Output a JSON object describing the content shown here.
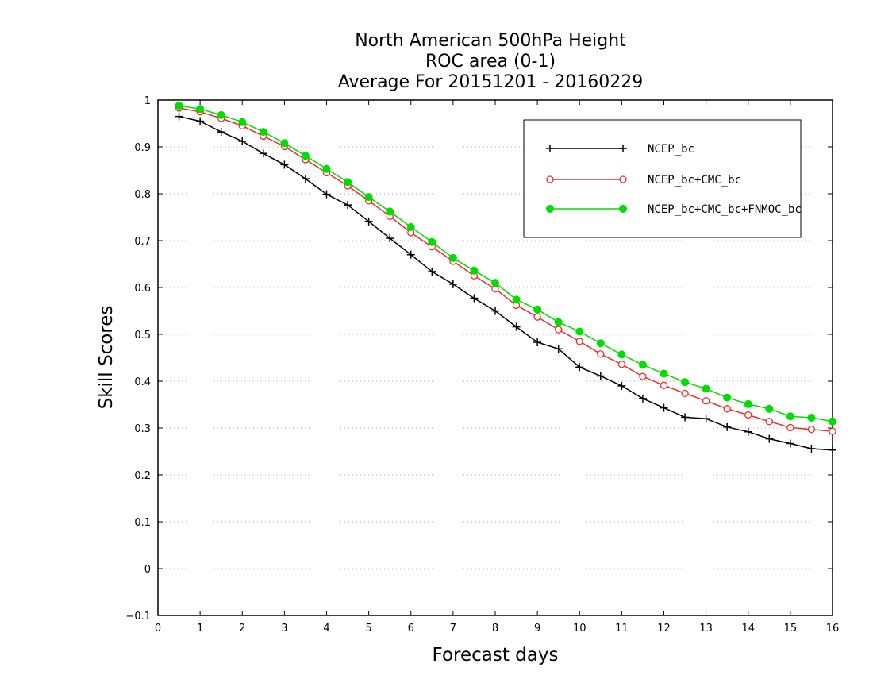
{
  "chart_data": {
    "type": "line",
    "title_lines": [
      "North American 500hPa Height",
      "ROC area (0-1)",
      "Average For 20151201 - 20160229"
    ],
    "xlabel": "Forecast days",
    "ylabel": "Skill Scores",
    "xlim": [
      0,
      16
    ],
    "ylim": [
      -0.1,
      1
    ],
    "x_ticks": [
      "0",
      "1",
      "2",
      "3",
      "4",
      "5",
      "6",
      "7",
      "8",
      "9",
      "10",
      "11",
      "12",
      "13",
      "14",
      "15",
      "16"
    ],
    "y_ticks": [
      "−0.1",
      "0",
      "0.1",
      "0.2",
      "0.3",
      "0.4",
      "0.5",
      "0.6",
      "0.7",
      "0.8",
      "0.9",
      "1"
    ],
    "grid": true,
    "legend_position": "top-right",
    "x": [
      0.5,
      1,
      1.5,
      2,
      2.5,
      3,
      3.5,
      4,
      4.5,
      5,
      5.5,
      6,
      6.5,
      7,
      7.5,
      8,
      8.5,
      9,
      9.5,
      10,
      10.5,
      11,
      11.5,
      12,
      12.5,
      13,
      13.5,
      14,
      14.5,
      15,
      15.5,
      16
    ],
    "series": [
      {
        "name": "NCEP_bc",
        "color": "#000000",
        "marker": "plus",
        "values": [
          0.965,
          0.955,
          0.932,
          0.912,
          0.886,
          0.862,
          0.832,
          0.799,
          0.776,
          0.741,
          0.705,
          0.67,
          0.634,
          0.607,
          0.577,
          0.55,
          0.516,
          0.483,
          0.469,
          0.43,
          0.411,
          0.39,
          0.363,
          0.343,
          0.323,
          0.32,
          0.302,
          0.292,
          0.277,
          0.267,
          0.256,
          0.253
        ]
      },
      {
        "name": "NCEP_bc+CMC_bc",
        "color": "#ee2c2c",
        "marker": "open-circle",
        "values": [
          0.983,
          0.975,
          0.961,
          0.945,
          0.923,
          0.901,
          0.873,
          0.845,
          0.817,
          0.785,
          0.752,
          0.717,
          0.687,
          0.656,
          0.625,
          0.597,
          0.562,
          0.537,
          0.51,
          0.485,
          0.458,
          0.436,
          0.41,
          0.391,
          0.374,
          0.358,
          0.341,
          0.328,
          0.314,
          0.301,
          0.297,
          0.293
        ]
      },
      {
        "name": "NCEP_bc+CMC_bc+FNMOC_bc",
        "color": "#00dd00",
        "marker": "filled-circle",
        "values": [
          0.988,
          0.981,
          0.968,
          0.953,
          0.932,
          0.908,
          0.881,
          0.853,
          0.825,
          0.793,
          0.762,
          0.729,
          0.697,
          0.663,
          0.636,
          0.61,
          0.574,
          0.553,
          0.526,
          0.506,
          0.481,
          0.457,
          0.435,
          0.416,
          0.398,
          0.384,
          0.365,
          0.351,
          0.341,
          0.325,
          0.322,
          0.314
        ]
      }
    ]
  }
}
